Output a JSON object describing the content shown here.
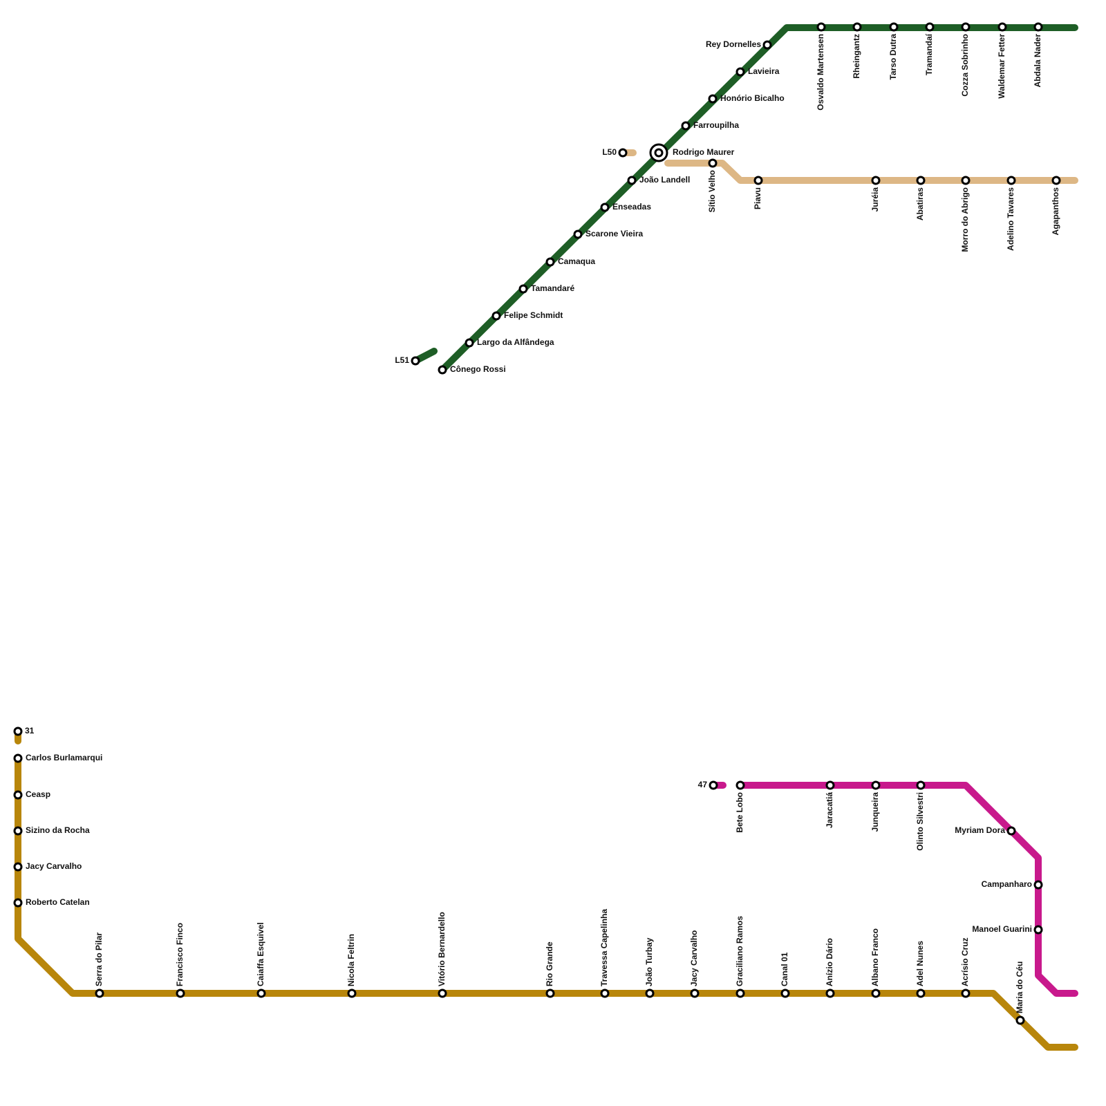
{
  "lines": [
    {
      "terminus": "L51",
      "color": "#1e5e26",
      "stations": [
        "Cônego Rossi",
        "Largo da Alfândega",
        "Felipe Schmidt",
        "Tamandaré",
        "Camaqua",
        "Scarone Vieira",
        "Enseadas",
        "João Landell",
        "Rodrigo Maurer",
        "Farroupilha",
        "Honório Bicalho",
        "Lavieira",
        "Rey Dornelles",
        "Osvaldo Martensen",
        "Rheingantz",
        "Tarso Dutra",
        "Tramandaí",
        "Cozza Sobrinho",
        "Waldemar Fetter",
        "Abdala Nader"
      ]
    },
    {
      "terminus": "L50",
      "color": "#ddb785",
      "stations": [
        "Sítio Velho",
        "Piavu",
        "Juréia",
        "Abatiras",
        "Morro do Abrigo",
        "Adelino Tavares",
        "Agapanthos"
      ]
    },
    {
      "terminus": "31",
      "color": "#b8860b",
      "stations": [
        "Carlos Burlamarqui",
        "Ceasp",
        "Sizino da Rocha",
        "Jacy Carvalho",
        "Roberto Catelan",
        "Serra do Pilar",
        "Francisco Finco",
        "Caiaffa Esquivel",
        "Nicola Feltrin",
        "Vitório Bernardello",
        "Rio Grande",
        "Travessa Capelinha",
        "João Turbay",
        "Jacy Carvalho",
        "Graciliano Ramos",
        "Canal 01",
        "Anízio Dário",
        "Albano Franco",
        "Adel Nunes",
        "Acrísio Cruz",
        "Maria do Céu"
      ]
    },
    {
      "terminus": "47",
      "color": "#c8198c",
      "stations": [
        "Bete Lobo",
        "Jaracatiá",
        "Junqueira",
        "Olinto Silvestri",
        "Myriam Dora",
        "Campanharo",
        "Manoel Guarini"
      ]
    }
  ]
}
